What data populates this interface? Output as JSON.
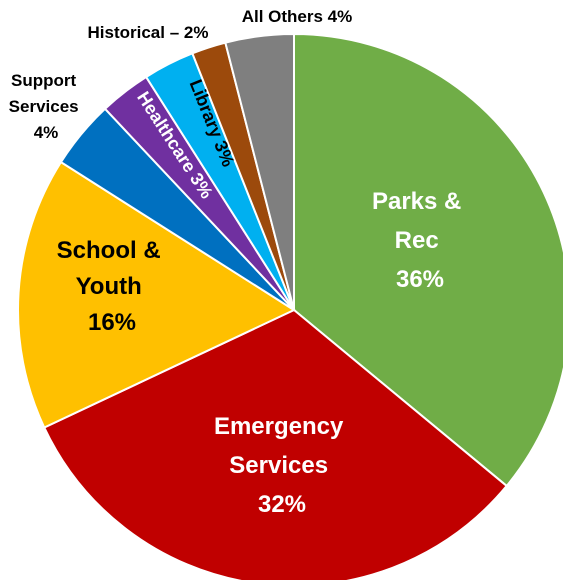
{
  "chart_data": {
    "type": "pie",
    "title": "",
    "slices": [
      {
        "label": "Parks & Rec",
        "value": 36,
        "color": "#70AD47",
        "label_color": "#ffffff"
      },
      {
        "label": "Emergency Services",
        "value": 32,
        "color": "#C00000",
        "label_color": "#ffffff"
      },
      {
        "label": "School & Youth",
        "value": 16,
        "color": "#FFC000",
        "label_color": "#000000"
      },
      {
        "label": "Support Services",
        "value": 4,
        "color": "#0070C0",
        "label_color": "#000000"
      },
      {
        "label": "Healthcare",
        "value": 3,
        "color": "#7030A0",
        "label_color": "#ffffff"
      },
      {
        "label": "Library",
        "value": 3,
        "color": "#00B0F0",
        "label_color": "#000000"
      },
      {
        "label": "Historical",
        "value": 2,
        "color": "#9C4A0C",
        "label_color": "#000000"
      },
      {
        "label": "All Others",
        "value": 4,
        "color": "#7F7F7F",
        "label_color": "#000000"
      }
    ],
    "labels": {
      "parks_l1": "Parks &",
      "parks_l2": "Rec",
      "parks_pct": "36%",
      "emergency_l1": "Emergency",
      "emergency_l2": "Services",
      "emergency_pct": "32%",
      "school_l1": "School &",
      "school_l2": "Youth",
      "school_pct": "16%",
      "support_l1": "Support",
      "support_l2": "Services",
      "support_pct": "4%",
      "healthcare": "Healthcare 3%",
      "library": "Library 3%",
      "historical": "Historical – 2%",
      "others": "All Others 4%"
    }
  }
}
